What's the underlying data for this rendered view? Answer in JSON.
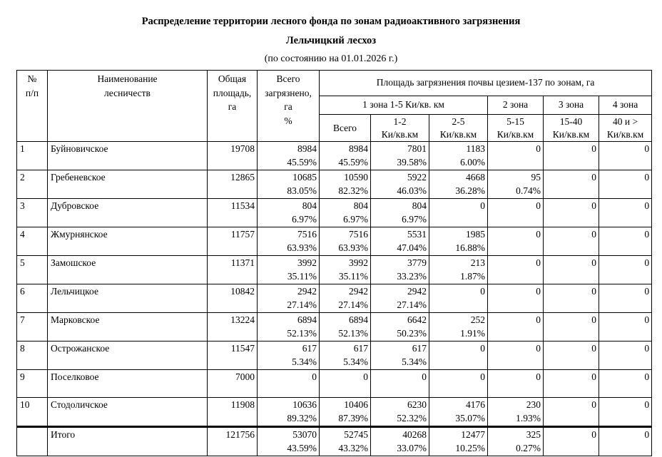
{
  "page": {
    "title": "Распределение территории лесного фонда по зонам радиоактивного загрязнения",
    "subtitle": "Лельчицкий лесхоз",
    "date_line": "(по состоянию на  01.01.2026 г.)"
  },
  "table": {
    "headers": {
      "num": "№\nп/п",
      "name": "Наименование\nлесничеств",
      "total_area": "Общая\nплощадь,\nга",
      "contaminated": "Всего\nзагрязнено,\nга\n%",
      "zones_group": "Площадь загрязнения почвы цезием-137 по зонам, га",
      "zone1": "1 зона  1-5 Ки/кв. км",
      "zone2": "2 зона",
      "zone3": "3 зона",
      "zone4": "4 зона",
      "sub": [
        "Всего",
        "1-2\nКи/кв.км",
        "2-5\nКи/кв.км",
        "5-15\nКи/кв.км",
        "15-40\nКи/кв.км",
        "40 и >\nКи/кв.км"
      ]
    },
    "rows": [
      {
        "num": "1",
        "name": "Буйновичское",
        "area": "19708",
        "cells": [
          [
            "8984",
            "45.59%"
          ],
          [
            "8984",
            "45.59%"
          ],
          [
            "7801",
            "39.58%"
          ],
          [
            "1183",
            "6.00%"
          ],
          [
            "0",
            ""
          ],
          [
            "0",
            ""
          ],
          [
            "0",
            ""
          ]
        ]
      },
      {
        "num": "2",
        "name": "Гребеневское",
        "area": "12865",
        "cells": [
          [
            "10685",
            "83.05%"
          ],
          [
            "10590",
            "82.32%"
          ],
          [
            "5922",
            "46.03%"
          ],
          [
            "4668",
            "36.28%"
          ],
          [
            "95",
            "0.74%"
          ],
          [
            "0",
            ""
          ],
          [
            "0",
            ""
          ]
        ]
      },
      {
        "num": "3",
        "name": "Дубровское",
        "area": "11534",
        "cells": [
          [
            "804",
            "6.97%"
          ],
          [
            "804",
            "6.97%"
          ],
          [
            "804",
            "6.97%"
          ],
          [
            "0",
            ""
          ],
          [
            "0",
            ""
          ],
          [
            "0",
            ""
          ],
          [
            "0",
            ""
          ]
        ]
      },
      {
        "num": "4",
        "name": "Жмурнянское",
        "area": "11757",
        "cells": [
          [
            "7516",
            "63.93%"
          ],
          [
            "7516",
            "63.93%"
          ],
          [
            "5531",
            "47.04%"
          ],
          [
            "1985",
            "16.88%"
          ],
          [
            "0",
            ""
          ],
          [
            "0",
            ""
          ],
          [
            "0",
            ""
          ]
        ]
      },
      {
        "num": "5",
        "name": "Замошское",
        "area": "11371",
        "cells": [
          [
            "3992",
            "35.11%"
          ],
          [
            "3992",
            "35.11%"
          ],
          [
            "3779",
            "33.23%"
          ],
          [
            "213",
            "1.87%"
          ],
          [
            "0",
            ""
          ],
          [
            "0",
            ""
          ],
          [
            "0",
            ""
          ]
        ]
      },
      {
        "num": "6",
        "name": "Лельчицкое",
        "area": "10842",
        "cells": [
          [
            "2942",
            "27.14%"
          ],
          [
            "2942",
            "27.14%"
          ],
          [
            "2942",
            "27.14%"
          ],
          [
            "0",
            ""
          ],
          [
            "0",
            ""
          ],
          [
            "0",
            ""
          ],
          [
            "0",
            ""
          ]
        ]
      },
      {
        "num": "7",
        "name": "Марковское",
        "area": "13224",
        "cells": [
          [
            "6894",
            "52.13%"
          ],
          [
            "6894",
            "52.13%"
          ],
          [
            "6642",
            "50.23%"
          ],
          [
            "252",
            "1.91%"
          ],
          [
            "0",
            ""
          ],
          [
            "0",
            ""
          ],
          [
            "0",
            ""
          ]
        ]
      },
      {
        "num": "8",
        "name": "Острожанское",
        "area": "11547",
        "cells": [
          [
            "617",
            "5.34%"
          ],
          [
            "617",
            "5.34%"
          ],
          [
            "617",
            "5.34%"
          ],
          [
            "0",
            ""
          ],
          [
            "0",
            ""
          ],
          [
            "0",
            ""
          ],
          [
            "0",
            ""
          ]
        ]
      },
      {
        "num": "9",
        "name": "Поселковое",
        "area": "7000",
        "cells": [
          [
            "0",
            ""
          ],
          [
            "0",
            ""
          ],
          [
            "0",
            ""
          ],
          [
            "0",
            ""
          ],
          [
            "0",
            ""
          ],
          [
            "0",
            ""
          ],
          [
            "0",
            ""
          ]
        ]
      },
      {
        "num": "10",
        "name": "Стодоличское",
        "area": "11908",
        "cells": [
          [
            "10636",
            "89.32%"
          ],
          [
            "10406",
            "87.39%"
          ],
          [
            "6230",
            "52.32%"
          ],
          [
            "4176",
            "35.07%"
          ],
          [
            "230",
            "1.93%"
          ],
          [
            "0",
            ""
          ],
          [
            "0",
            ""
          ]
        ]
      },
      {
        "num": "",
        "name": "Итого",
        "area": "121756",
        "is_total": true,
        "cells": [
          [
            "53070",
            "43.59%"
          ],
          [
            "52745",
            "43.32%"
          ],
          [
            "40268",
            "33.07%"
          ],
          [
            "12477",
            "10.25%"
          ],
          [
            "325",
            "0.27%"
          ],
          [
            "0",
            ""
          ],
          [
            "0",
            ""
          ]
        ]
      }
    ]
  }
}
